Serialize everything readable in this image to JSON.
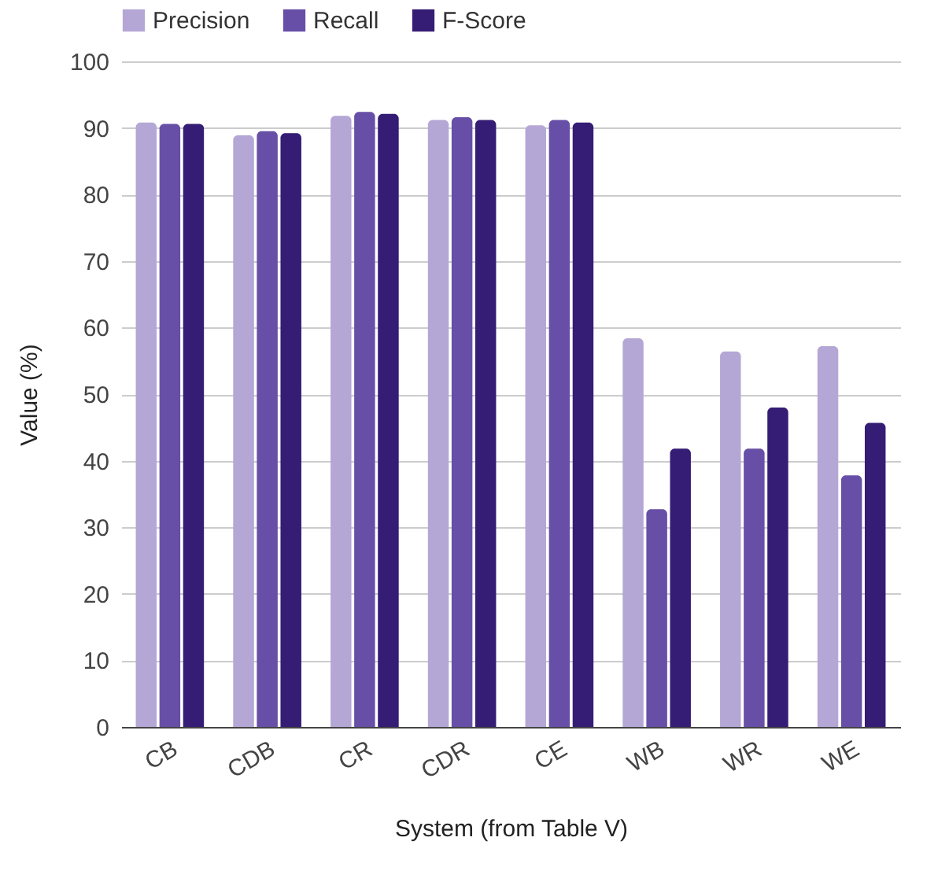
{
  "chart_data": {
    "type": "bar",
    "xlabel": "System (from Table V)",
    "ylabel": "Value (%)",
    "categories": [
      "CB",
      "CDB",
      "CR",
      "CDR",
      "CE",
      "WB",
      "WR",
      "WE"
    ],
    "series": [
      {
        "name": "Precision",
        "color": "#b4a7d6",
        "values": [
          90.8,
          88.9,
          91.8,
          91.2,
          90.4,
          58.4,
          56.4,
          57.2
        ]
      },
      {
        "name": "Recall",
        "color": "#674ea7",
        "values": [
          90.6,
          89.5,
          92.4,
          91.6,
          91.2,
          32.7,
          41.8,
          37.8
        ]
      },
      {
        "name": "F-Score",
        "color": "#351c75",
        "values": [
          90.6,
          89.2,
          92.1,
          91.2,
          90.8,
          41.8,
          48.0,
          45.7
        ]
      }
    ],
    "ylim": [
      0,
      100
    ],
    "yticks": [
      0,
      10,
      20,
      30,
      40,
      50,
      60,
      70,
      80,
      90,
      100
    ],
    "grid": "y",
    "legend": "top"
  }
}
